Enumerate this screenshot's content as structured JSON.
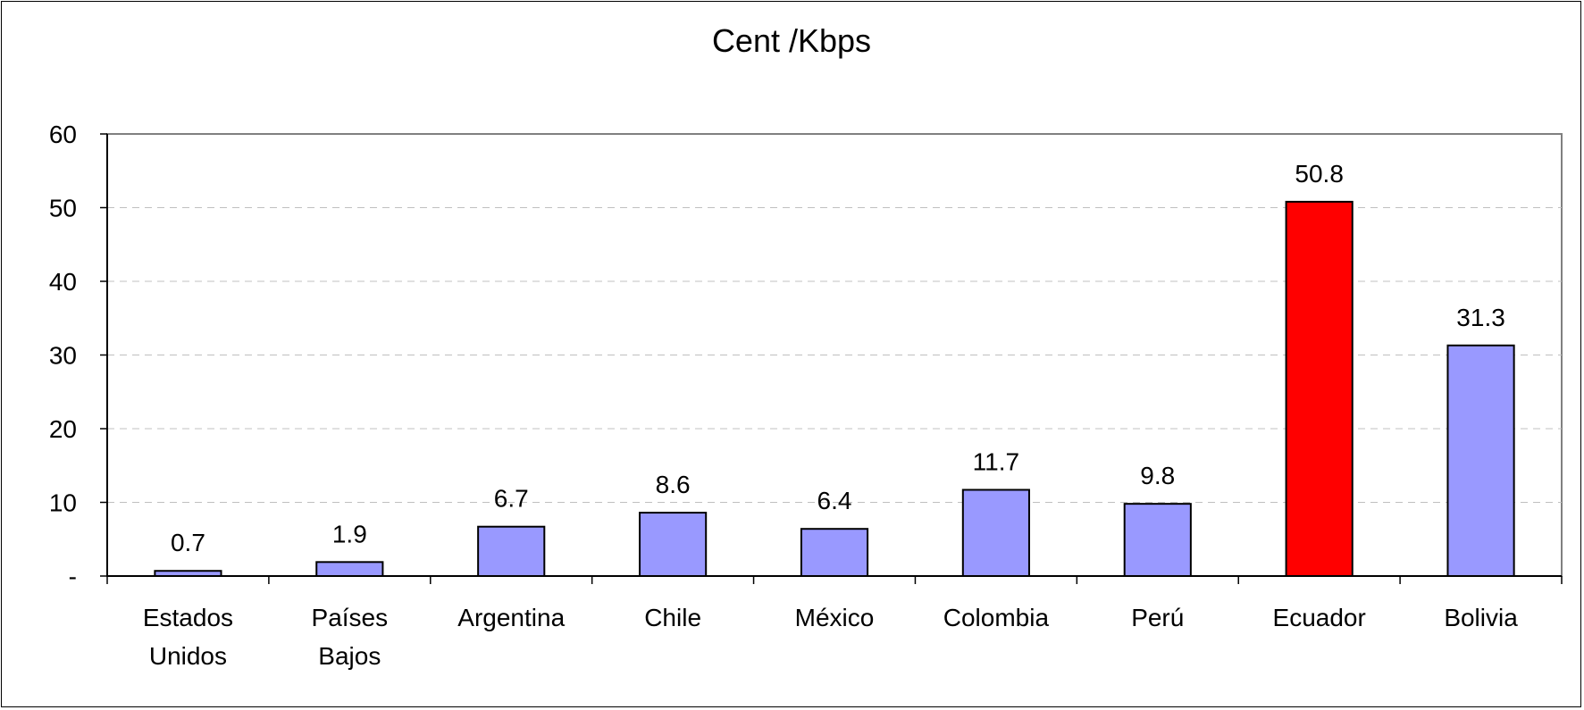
{
  "chart_data": {
    "type": "bar",
    "title": "Cent /Kbps",
    "xlabel": "",
    "ylabel": "",
    "ylim": [
      0,
      60
    ],
    "yticks": [
      {
        "value": 0,
        "label": "-"
      },
      {
        "value": 10,
        "label": "10"
      },
      {
        "value": 20,
        "label": "20"
      },
      {
        "value": 30,
        "label": "30"
      },
      {
        "value": 40,
        "label": "40"
      },
      {
        "value": 50,
        "label": "50"
      },
      {
        "value": 60,
        "label": "60"
      }
    ],
    "categories": [
      [
        "Estados",
        "Unidos"
      ],
      [
        "Países",
        "Bajos"
      ],
      [
        "Argentina"
      ],
      [
        "Chile"
      ],
      [
        "México"
      ],
      [
        "Colombia"
      ],
      [
        "Perú"
      ],
      [
        "Ecuador"
      ],
      [
        "Bolivia"
      ]
    ],
    "values": [
      0.7,
      1.9,
      6.7,
      8.6,
      6.4,
      11.7,
      9.8,
      50.8,
      31.3
    ],
    "value_labels": [
      "0.7",
      "1.9",
      "6.7",
      "8.6",
      "6.4",
      "11.7",
      "9.8",
      "50.8",
      "31.3"
    ],
    "bar_colors": [
      "#9999ff",
      "#9999ff",
      "#9999ff",
      "#9999ff",
      "#9999ff",
      "#9999ff",
      "#9999ff",
      "#ff0000",
      "#9999ff"
    ],
    "grid": "horizontal-dashed",
    "legend": "none"
  }
}
